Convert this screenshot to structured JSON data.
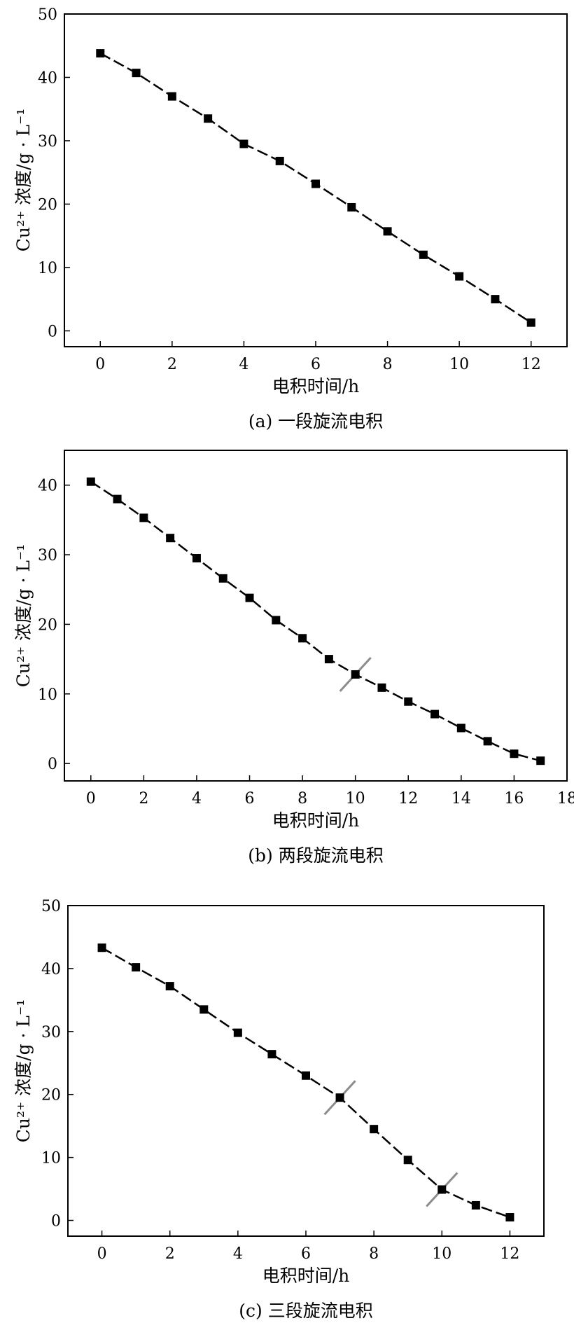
{
  "chart_data": [
    {
      "type": "line",
      "caption": "(a) 一段旋流电积",
      "xlabel": "电积时间/h",
      "ylabel": "Cu²⁺ 浓度/g · L⁻¹",
      "xlim": [
        -1,
        13
      ],
      "ylim": [
        -2.5,
        50
      ],
      "xticks": [
        0,
        2,
        4,
        6,
        8,
        10,
        12
      ],
      "yticks": [
        0,
        10,
        20,
        30,
        40,
        50
      ],
      "x": [
        0,
        1,
        2,
        3,
        4,
        5,
        6,
        7,
        8,
        9,
        10,
        11,
        12
      ],
      "y": [
        43.8,
        40.7,
        37.0,
        33.5,
        29.5,
        26.8,
        23.2,
        19.5,
        15.7,
        12.0,
        8.6,
        5.0,
        1.3
      ],
      "stage_breaks": [],
      "grid": false,
      "marker": "square"
    },
    {
      "type": "line",
      "caption": "(b) 两段旋流电积",
      "xlabel": "电积时间/h",
      "ylabel": "Cu²⁺ 浓度/g · L⁻¹",
      "xlim": [
        -1,
        18
      ],
      "ylim": [
        -2.5,
        45
      ],
      "xticks": [
        0,
        2,
        4,
        6,
        8,
        10,
        12,
        14,
        16,
        18
      ],
      "yticks": [
        0,
        10,
        20,
        30,
        40
      ],
      "x": [
        0,
        1,
        2,
        3,
        4,
        5,
        6,
        7,
        8,
        9,
        10,
        11,
        12,
        13,
        14,
        15,
        16,
        17
      ],
      "y": [
        40.5,
        38.0,
        35.3,
        32.4,
        29.5,
        26.6,
        23.8,
        20.6,
        18.0,
        15.0,
        12.8,
        10.9,
        8.9,
        7.1,
        5.1,
        3.2,
        1.4,
        0.4
      ],
      "stage_breaks": [
        10
      ],
      "grid": false,
      "marker": "square"
    },
    {
      "type": "line",
      "caption": "(c) 三段旋流电积",
      "xlabel": "电积时间/h",
      "ylabel": "Cu²⁺ 浓度/g · L⁻¹",
      "xlim": [
        -1,
        13
      ],
      "ylim": [
        -2.5,
        50
      ],
      "xticks": [
        0,
        2,
        4,
        6,
        8,
        10,
        12
      ],
      "yticks": [
        0,
        10,
        20,
        30,
        40,
        50
      ],
      "x": [
        0,
        1,
        2,
        3,
        4,
        5,
        6,
        7,
        8,
        9,
        10,
        11,
        12
      ],
      "y": [
        43.3,
        40.2,
        37.2,
        33.5,
        29.8,
        26.4,
        23.0,
        19.5,
        14.5,
        9.6,
        4.9,
        2.4,
        0.5
      ],
      "stage_breaks": [
        7,
        10
      ],
      "grid": false,
      "marker": "square"
    }
  ]
}
